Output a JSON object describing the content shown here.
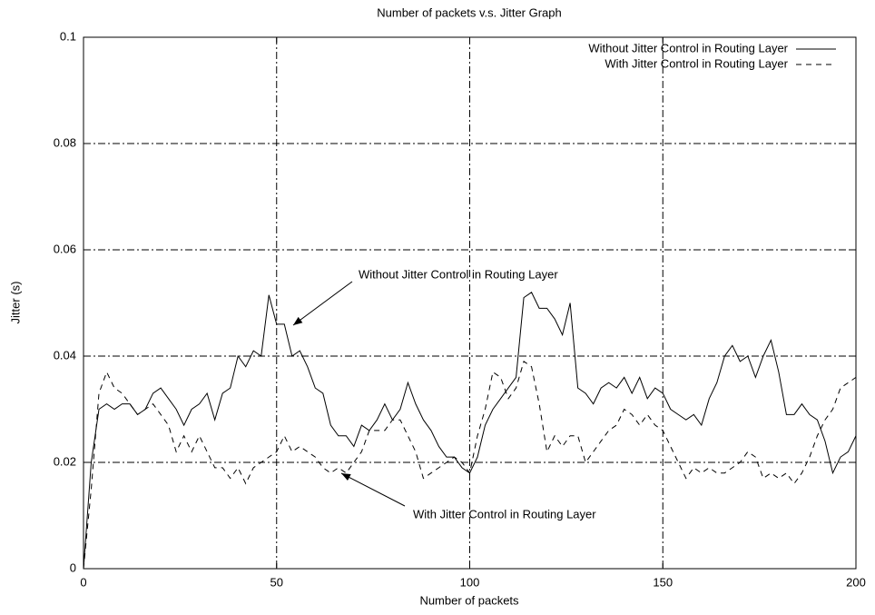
{
  "chart_data": {
    "type": "line",
    "title": "Number of packets v.s. Jitter Graph",
    "x_label": "Number of packets",
    "y_label": "Jitter (s)",
    "x": [
      0,
      2,
      4,
      6,
      8,
      10,
      12,
      14,
      16,
      18,
      20,
      22,
      24,
      26,
      28,
      30,
      32,
      34,
      36,
      38,
      40,
      42,
      44,
      46,
      48,
      50,
      52,
      54,
      56,
      58,
      60,
      62,
      64,
      66,
      68,
      70,
      72,
      74,
      76,
      78,
      80,
      82,
      84,
      86,
      88,
      90,
      92,
      94,
      96,
      98,
      100,
      102,
      104,
      106,
      108,
      110,
      112,
      114,
      116,
      118,
      120,
      122,
      124,
      126,
      128,
      130,
      132,
      134,
      136,
      138,
      140,
      142,
      144,
      146,
      148,
      150,
      152,
      154,
      156,
      158,
      160,
      162,
      164,
      166,
      168,
      170,
      172,
      174,
      176,
      178,
      180,
      182,
      184,
      186,
      188,
      190,
      192,
      194,
      196,
      198,
      200
    ],
    "series": [
      {
        "name": "Without Jitter Control in Routing Layer",
        "color": "#000000",
        "line_style": "solid",
        "values": [
          0,
          0.02,
          0.03,
          0.031,
          0.03,
          0.031,
          0.031,
          0.029,
          0.03,
          0.033,
          0.034,
          0.032,
          0.03,
          0.027,
          0.03,
          0.031,
          0.033,
          0.028,
          0.033,
          0.034,
          0.04,
          0.038,
          0.041,
          0.04,
          0.0515,
          0.046,
          0.046,
          0.04,
          0.041,
          0.038,
          0.034,
          0.033,
          0.027,
          0.025,
          0.025,
          0.023,
          0.027,
          0.026,
          0.028,
          0.031,
          0.028,
          0.03,
          0.035,
          0.031,
          0.028,
          0.026,
          0.023,
          0.021,
          0.021,
          0.019,
          0.018,
          0.021,
          0.027,
          0.03,
          0.032,
          0.034,
          0.036,
          0.051,
          0.052,
          0.049,
          0.049,
          0.047,
          0.044,
          0.05,
          0.034,
          0.033,
          0.031,
          0.034,
          0.035,
          0.034,
          0.036,
          0.033,
          0.036,
          0.032,
          0.034,
          0.033,
          0.03,
          0.029,
          0.028,
          0.029,
          0.027,
          0.032,
          0.035,
          0.04,
          0.042,
          0.039,
          0.04,
          0.036,
          0.04,
          0.043,
          0.037,
          0.029,
          0.029,
          0.031,
          0.029,
          0.028,
          0.024,
          0.018,
          0.021,
          0.022,
          0.025
        ]
      },
      {
        "name": "With Jitter Control in Routing Layer",
        "color": "#000000",
        "line_style": "dashed",
        "values": [
          0,
          0.015,
          0.033,
          0.037,
          0.034,
          0.033,
          0.031,
          0.029,
          0.03,
          0.031,
          0.029,
          0.027,
          0.022,
          0.025,
          0.022,
          0.025,
          0.022,
          0.019,
          0.019,
          0.017,
          0.019,
          0.016,
          0.019,
          0.02,
          0.021,
          0.022,
          0.025,
          0.022,
          0.023,
          0.022,
          0.021,
          0.019,
          0.018,
          0.019,
          0.018,
          0.02,
          0.022,
          0.026,
          0.026,
          0.026,
          0.028,
          0.028,
          0.025,
          0.022,
          0.017,
          0.018,
          0.019,
          0.02,
          0.021,
          0.02,
          0.018,
          0.025,
          0.03,
          0.037,
          0.036,
          0.032,
          0.034,
          0.039,
          0.038,
          0.031,
          0.022,
          0.025,
          0.023,
          0.025,
          0.025,
          0.02,
          0.022,
          0.024,
          0.026,
          0.027,
          0.03,
          0.029,
          0.027,
          0.029,
          0.027,
          0.026,
          0.023,
          0.02,
          0.017,
          0.019,
          0.018,
          0.019,
          0.018,
          0.018,
          0.019,
          0.02,
          0.022,
          0.021,
          0.017,
          0.018,
          0.017,
          0.018,
          0.016,
          0.018,
          0.021,
          0.025,
          0.028,
          0.03,
          0.034,
          0.035,
          0.036
        ]
      }
    ],
    "annotations": [
      "Without Jitter Control in Routing Layer",
      "With Jitter Control in Routing Layer"
    ],
    "xlim": [
      0,
      200
    ],
    "xticks": [
      0,
      50,
      100,
      150,
      200
    ],
    "ylim": [
      0,
      0.1
    ],
    "yticks": [
      0,
      0.02,
      0.04,
      0.06,
      0.08,
      0.1
    ],
    "grid": true,
    "legend_position": "upper right"
  }
}
